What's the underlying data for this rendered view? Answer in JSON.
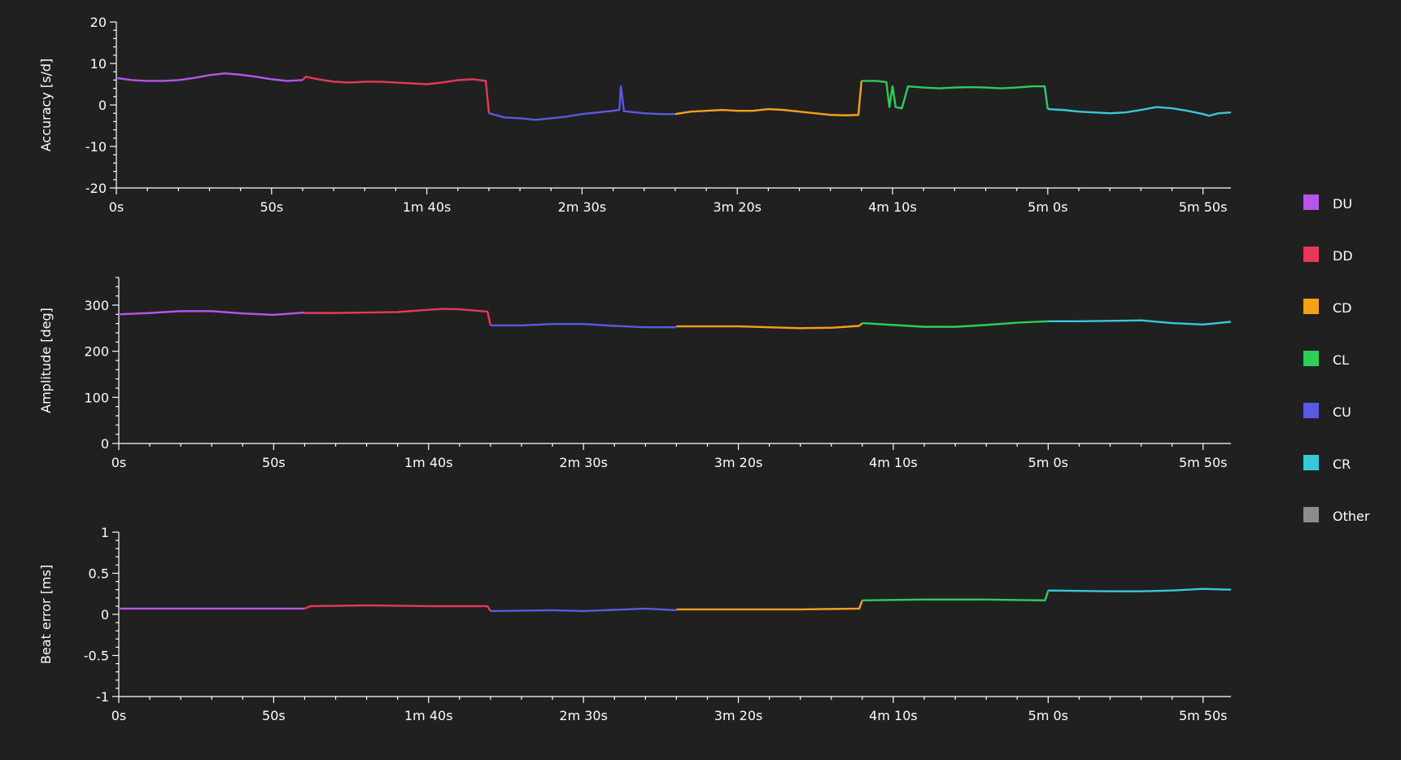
{
  "chart_data": [
    {
      "type": "line",
      "ylabel": "Accuracy [s/d]",
      "xlim": [
        0,
        359
      ],
      "ylim": [
        -20,
        20
      ],
      "xticks": [
        {
          "value": 0,
          "label": "0s"
        },
        {
          "value": 50,
          "label": "50s"
        },
        {
          "value": 100,
          "label": "1m 40s"
        },
        {
          "value": 150,
          "label": "2m 30s"
        },
        {
          "value": 200,
          "label": "3m 20s"
        },
        {
          "value": 250,
          "label": "4m 10s"
        },
        {
          "value": 300,
          "label": "5m 0s"
        },
        {
          "value": 350,
          "label": "5m 50s"
        }
      ],
      "yticks": [
        -20,
        -10,
        0,
        10,
        20
      ],
      "series": [
        {
          "name": "DU",
          "color": "#b656e8",
          "x": [
            0,
            5,
            10,
            15,
            20,
            25,
            30,
            35,
            40,
            45,
            50,
            55,
            60
          ],
          "values": [
            6.5,
            6,
            5.8,
            5.8,
            6,
            6.5,
            7.2,
            7.6,
            7.3,
            6.8,
            6.2,
            5.8,
            6
          ]
        },
        {
          "name": "DD",
          "color": "#e8385a",
          "x": [
            60,
            61,
            65,
            70,
            75,
            80,
            85,
            90,
            95,
            100,
            105,
            110,
            115,
            119,
            120
          ],
          "values": [
            6,
            6.8,
            6.2,
            5.6,
            5.4,
            5.6,
            5.6,
            5.4,
            5.2,
            5,
            5.4,
            6,
            6.2,
            5.8,
            -2
          ]
        },
        {
          "name": "CD",
          "color": "#f5a01a",
          "x": [
            180,
            185,
            190,
            195,
            200,
            205,
            210,
            215,
            220,
            225,
            230,
            235,
            239,
            240
          ],
          "values": [
            -2.2,
            -1.6,
            -1.4,
            -1.2,
            -1.4,
            -1.4,
            -1,
            -1.2,
            -1.6,
            -2,
            -2.4,
            -2.5,
            -2.4,
            5.8
          ]
        },
        {
          "name": "CL",
          "color": "#2ecc5a",
          "x": [
            240,
            245,
            248,
            249,
            250,
            251,
            253,
            255,
            260,
            265,
            270,
            275,
            280,
            285,
            290,
            295,
            299,
            300
          ],
          "values": [
            5.8,
            5.8,
            5.5,
            -0.5,
            4.5,
            -0.5,
            -0.8,
            4.5,
            4.2,
            4,
            4.2,
            4.3,
            4.2,
            4,
            4.2,
            4.5,
            4.5,
            -1
          ]
        },
        {
          "name": "CU",
          "color": "#5a5ae0",
          "x": [
            120,
            125,
            130,
            135,
            140,
            145,
            150,
            155,
            160,
            162,
            162.5,
            163.5,
            165,
            170,
            175,
            180
          ],
          "values": [
            -2,
            -3,
            -3.2,
            -3.6,
            -3.2,
            -2.8,
            -2.2,
            -1.8,
            -1.4,
            -1.2,
            4.5,
            -1.5,
            -1.6,
            -2,
            -2.2,
            -2.2
          ]
        },
        {
          "name": "CR",
          "color": "#38c8d8",
          "x": [
            300,
            305,
            310,
            315,
            320,
            325,
            330,
            335,
            340,
            345,
            350,
            352,
            355,
            359
          ],
          "values": [
            -1,
            -1.2,
            -1.6,
            -1.8,
            -2,
            -1.8,
            -1.2,
            -0.5,
            -0.8,
            -1.4,
            -2.2,
            -2.6,
            -2,
            -1.8
          ]
        },
        {
          "name": "Other",
          "color": "#8c8c8c",
          "x": [],
          "values": []
        }
      ]
    },
    {
      "type": "line",
      "ylabel": "Amplitude [deg]",
      "xlim": [
        0,
        359
      ],
      "ylim": [
        0,
        360
      ],
      "xticks": [
        {
          "value": 0,
          "label": "0s"
        },
        {
          "value": 50,
          "label": "50s"
        },
        {
          "value": 100,
          "label": "1m 40s"
        },
        {
          "value": 150,
          "label": "2m 30s"
        },
        {
          "value": 200,
          "label": "3m 20s"
        },
        {
          "value": 250,
          "label": "4m 10s"
        },
        {
          "value": 300,
          "label": "5m 0s"
        },
        {
          "value": 350,
          "label": "5m 50s"
        }
      ],
      "yticks": [
        0,
        100,
        200,
        300
      ],
      "series": [
        {
          "name": "DU",
          "color": "#b656e8",
          "x": [
            0,
            10,
            20,
            30,
            40,
            50,
            60
          ],
          "values": [
            280,
            283,
            287,
            287,
            282,
            279,
            284
          ]
        },
        {
          "name": "DD",
          "color": "#e8385a",
          "x": [
            60,
            70,
            80,
            90,
            100,
            105,
            110,
            119,
            120
          ],
          "values": [
            283,
            283,
            284,
            285,
            290,
            292,
            291,
            286,
            256
          ]
        },
        {
          "name": "CD",
          "color": "#f5a01a",
          "x": [
            180,
            190,
            200,
            210,
            220,
            230,
            239,
            240
          ],
          "values": [
            254,
            254,
            254,
            252,
            250,
            251,
            255,
            261
          ]
        },
        {
          "name": "CL",
          "color": "#2ecc5a",
          "x": [
            240,
            250,
            260,
            270,
            280,
            290,
            300
          ],
          "values": [
            261,
            257,
            253,
            253,
            257,
            262,
            265
          ]
        },
        {
          "name": "CU",
          "color": "#5a5ae0",
          "x": [
            120,
            130,
            140,
            150,
            160,
            170,
            180
          ],
          "values": [
            256,
            256,
            259,
            259,
            255,
            252,
            252
          ]
        },
        {
          "name": "CR",
          "color": "#38c8d8",
          "x": [
            300,
            310,
            320,
            330,
            340,
            350,
            359
          ],
          "values": [
            265,
            265,
            266,
            267,
            261,
            258,
            264
          ]
        },
        {
          "name": "Other",
          "color": "#8c8c8c",
          "x": [],
          "values": []
        }
      ]
    },
    {
      "type": "line",
      "ylabel": "Beat error [ms]",
      "xlim": [
        0,
        359
      ],
      "ylim": [
        -1,
        1
      ],
      "xticks": [
        {
          "value": 0,
          "label": "0s"
        },
        {
          "value": 50,
          "label": "50s"
        },
        {
          "value": 100,
          "label": "1m 40s"
        },
        {
          "value": 150,
          "label": "2m 30s"
        },
        {
          "value": 200,
          "label": "3m 20s"
        },
        {
          "value": 250,
          "label": "4m 10s"
        },
        {
          "value": 300,
          "label": "5m 0s"
        },
        {
          "value": 350,
          "label": "5m 50s"
        }
      ],
      "yticks": [
        -1,
        -0.5,
        0,
        0.5,
        1
      ],
      "series": [
        {
          "name": "DU",
          "color": "#b656e8",
          "x": [
            0,
            20,
            40,
            59,
            60
          ],
          "values": [
            0.07,
            0.07,
            0.07,
            0.07,
            0.07
          ]
        },
        {
          "name": "DD",
          "color": "#e8385a",
          "x": [
            60,
            62,
            80,
            100,
            119,
            120
          ],
          "values": [
            0.07,
            0.1,
            0.11,
            0.1,
            0.1,
            0.04
          ]
        },
        {
          "name": "CD",
          "color": "#f5a01a",
          "x": [
            180,
            200,
            220,
            239,
            240
          ],
          "values": [
            0.06,
            0.06,
            0.06,
            0.07,
            0.17
          ]
        },
        {
          "name": "CL",
          "color": "#2ecc5a",
          "x": [
            240,
            260,
            280,
            299,
            300
          ],
          "values": [
            0.17,
            0.18,
            0.18,
            0.17,
            0.29
          ]
        },
        {
          "name": "CU",
          "color": "#5a5ae0",
          "x": [
            120,
            140,
            150,
            170,
            180
          ],
          "values": [
            0.04,
            0.05,
            0.04,
            0.07,
            0.05
          ]
        },
        {
          "name": "CR",
          "color": "#38c8d8",
          "x": [
            300,
            320,
            330,
            340,
            350,
            359
          ],
          "values": [
            0.29,
            0.28,
            0.28,
            0.29,
            0.31,
            0.3
          ]
        },
        {
          "name": "Other",
          "color": "#8c8c8c",
          "x": [],
          "values": []
        }
      ]
    }
  ]
}
